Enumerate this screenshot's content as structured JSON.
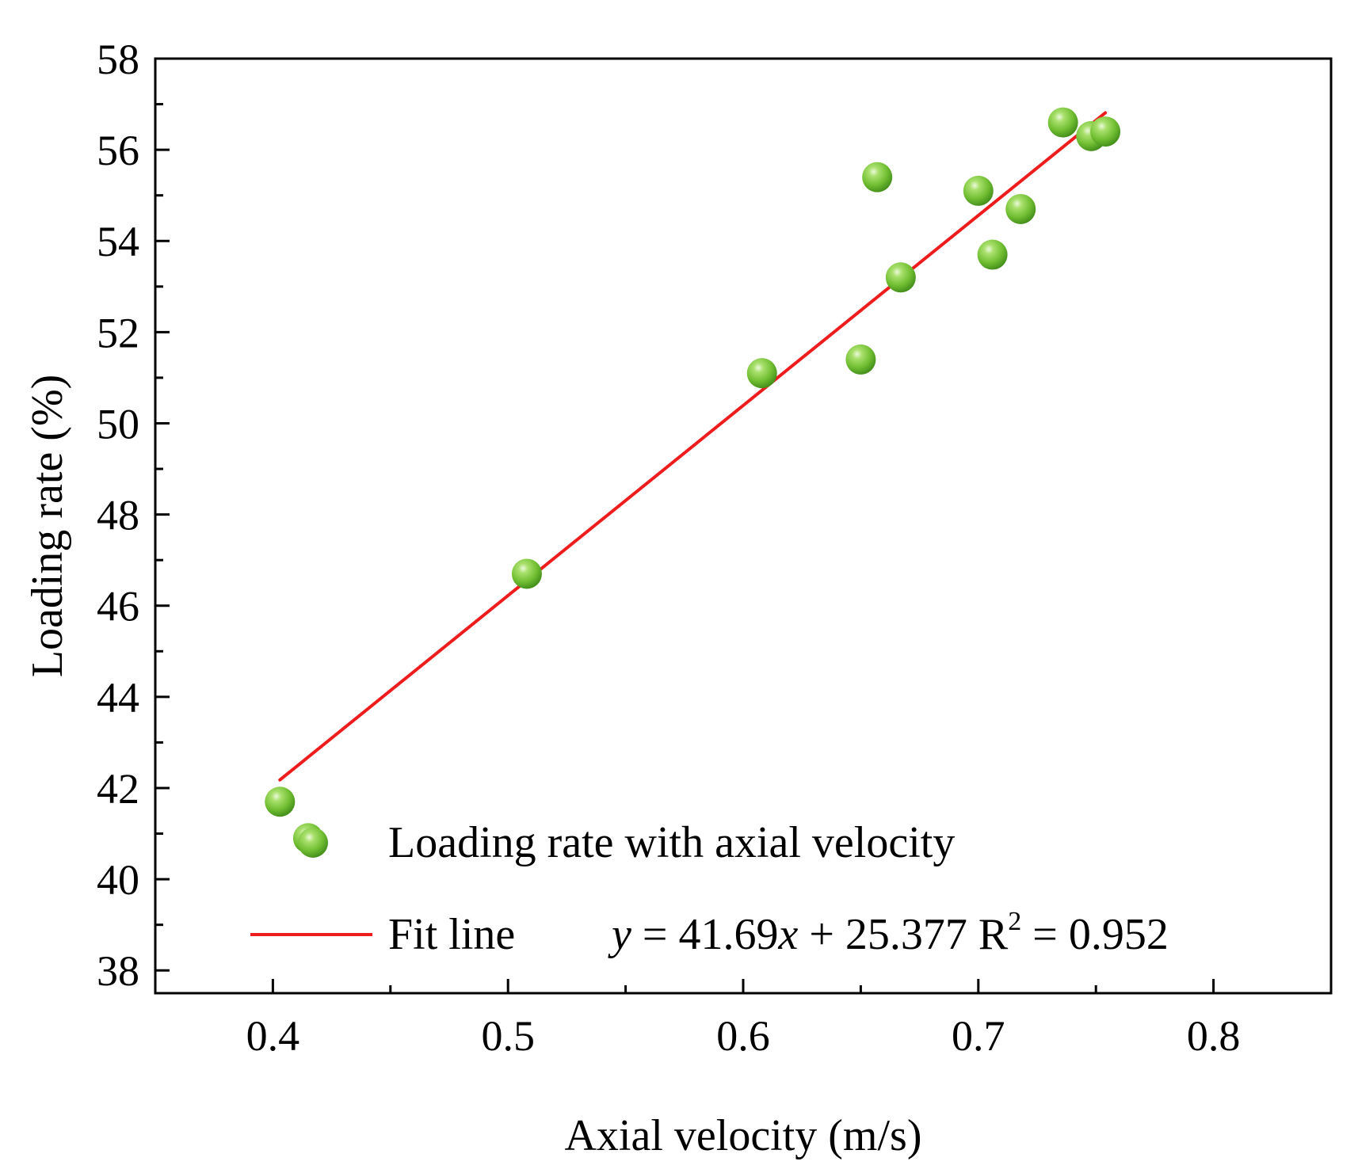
{
  "chart_data": {
    "type": "scatter",
    "title": "",
    "xlabel": "Axial velocity (m/s)",
    "ylabel": "Loading rate (%)",
    "xlim": [
      0.35,
      0.85
    ],
    "ylim": [
      37.5,
      58
    ],
    "xticks": [
      0.4,
      0.5,
      0.6,
      0.7,
      0.8
    ],
    "xtick_labels": [
      "0.4",
      "0.5",
      "0.6",
      "0.7",
      "0.8"
    ],
    "yticks": [
      38,
      40,
      42,
      44,
      46,
      48,
      50,
      52,
      54,
      56,
      58
    ],
    "ytick_labels": [
      "38",
      "40",
      "42",
      "44",
      "46",
      "48",
      "50",
      "52",
      "54",
      "56",
      "58"
    ],
    "series": [
      {
        "name": "Loading rate with axial velocity",
        "marker_color": "#7cc63a",
        "points": [
          {
            "x": 0.403,
            "y": 41.7
          },
          {
            "x": 0.415,
            "y": 40.9
          },
          {
            "x": 0.508,
            "y": 46.7
          },
          {
            "x": 0.608,
            "y": 51.1
          },
          {
            "x": 0.65,
            "y": 51.4
          },
          {
            "x": 0.657,
            "y": 55.4
          },
          {
            "x": 0.667,
            "y": 53.2
          },
          {
            "x": 0.7,
            "y": 55.1
          },
          {
            "x": 0.706,
            "y": 53.7
          },
          {
            "x": 0.718,
            "y": 54.7
          },
          {
            "x": 0.736,
            "y": 56.6
          },
          {
            "x": 0.748,
            "y": 56.3
          },
          {
            "x": 0.754,
            "y": 56.4
          }
        ]
      }
    ],
    "fit_line": {
      "name": "Fit line",
      "color": "#ee1c1c",
      "slope": 41.69,
      "intercept": 25.377,
      "x_range": [
        0.403,
        0.754
      ],
      "equation_prefix": "y",
      "equation_mid": " = 41.69",
      "equation_var": "x",
      "equation_suffix": " + 25.377  R",
      "r2_superscript": "2",
      "r2_value": " = 0.952"
    },
    "legend_position": "bottom-right"
  }
}
